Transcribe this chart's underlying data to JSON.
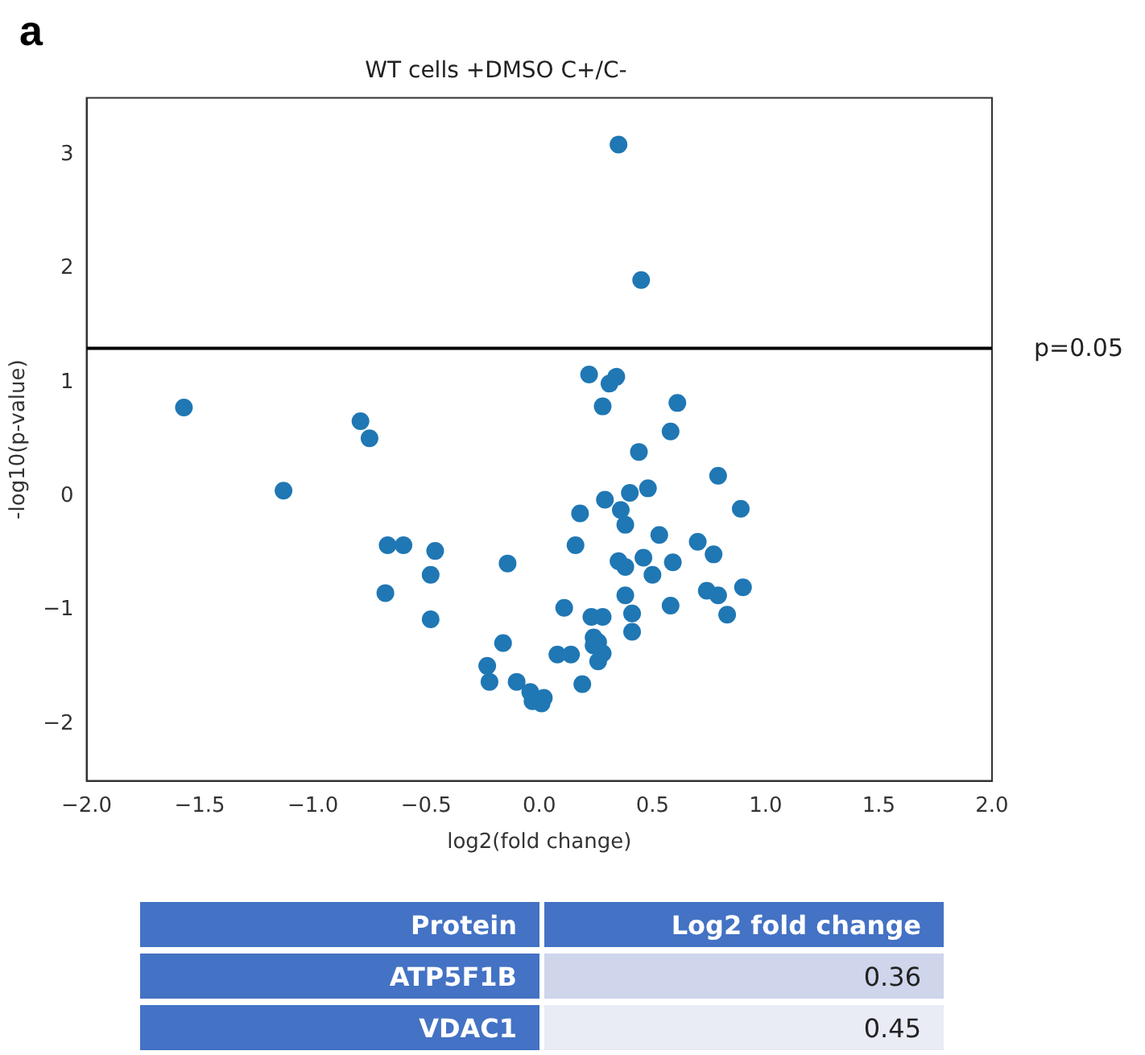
{
  "chart_data": {
    "type": "scatter",
    "title": "WT cells +DMSO C+/C-",
    "xlabel": "log2(fold change)",
    "ylabel": "-log10(p-value)",
    "xlim": [
      -2,
      2
    ],
    "ylim": [
      -2.5,
      3.5
    ],
    "xticks": [
      {
        "value": -2,
        "label": "−2.0"
      },
      {
        "value": -1.5,
        "label": "−1.5"
      },
      {
        "value": -1,
        "label": "−1.0"
      },
      {
        "value": -0.5,
        "label": "−0.5"
      },
      {
        "value": 0,
        "label": "0.0"
      },
      {
        "value": 0.5,
        "label": "0.5"
      },
      {
        "value": 1,
        "label": "1.0"
      },
      {
        "value": 1.5,
        "label": "1.5"
      },
      {
        "value": 2,
        "label": "2.0"
      }
    ],
    "yticks": [
      {
        "value": -2,
        "label": "−2"
      },
      {
        "value": -1,
        "label": "−1"
      },
      0,
      1,
      2,
      3
    ],
    "grid": false,
    "legend": false,
    "marker": "circle",
    "ref_lines": [
      {
        "axis": "y",
        "value": 1.301,
        "color": "#000000"
      }
    ],
    "annotations": [
      "a",
      "p=0.05",
      "Protein",
      "Log2 fold change",
      "ATP5F1B",
      "0.36",
      "VDAC1",
      "0.45"
    ],
    "series": [
      {
        "color": "#1f77b4",
        "x": [
          -1.57,
          -1.13,
          -0.79,
          -0.75,
          -0.67,
          -0.6,
          -0.46,
          -0.48,
          -0.68,
          -0.48,
          -0.14,
          0.35,
          0.45,
          0.22,
          0.34,
          0.31,
          0.28,
          0.61,
          0.58,
          0.44,
          0.79,
          0.89,
          0.29,
          0.4,
          0.48,
          0.18,
          0.36,
          0.38,
          0.53,
          0.7,
          0.77,
          0.16,
          0.35,
          0.38,
          0.46,
          0.59,
          0.5,
          0.38,
          0.74,
          0.79,
          0.9,
          0.58,
          0.83,
          0.41,
          0.41,
          0.11,
          0.23,
          0.28,
          0.24,
          0.26,
          0.24,
          0.28,
          0.26,
          0.08,
          0.14,
          -0.16,
          -0.23,
          -0.22,
          -0.1,
          0.19,
          -0.04,
          0.02,
          0.01,
          -0.03
        ],
        "values": [
          0.78,
          0.05,
          0.66,
          0.51,
          -0.43,
          -0.43,
          -0.48,
          -0.69,
          -0.85,
          -1.08,
          -0.59,
          3.09,
          1.9,
          1.07,
          1.05,
          0.99,
          0.79,
          0.82,
          0.57,
          0.39,
          0.18,
          -0.11,
          -0.03,
          0.03,
          0.07,
          -0.15,
          -0.12,
          -0.25,
          -0.34,
          -0.4,
          -0.51,
          -0.43,
          -0.57,
          -0.62,
          -0.54,
          -0.58,
          -0.69,
          -0.87,
          -0.83,
          -0.87,
          -0.8,
          -0.96,
          -1.04,
          -1.03,
          -1.19,
          -0.98,
          -1.06,
          -1.06,
          -1.24,
          -1.28,
          -1.31,
          -1.38,
          -1.45,
          -1.39,
          -1.39,
          -1.29,
          -1.49,
          -1.63,
          -1.63,
          -1.65,
          -1.72,
          -1.77,
          -1.82,
          -1.8
        ]
      }
    ]
  }
}
